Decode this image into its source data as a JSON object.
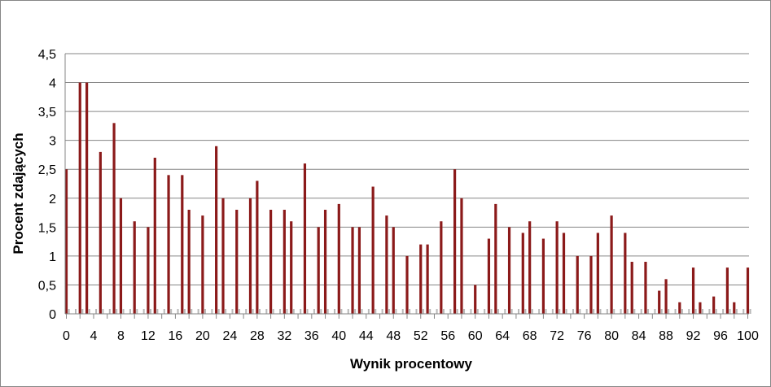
{
  "chart_data": {
    "type": "bar",
    "title": "",
    "xlabel": "Wynik procentowy",
    "ylabel": "Procent zdających",
    "ylim": [
      0,
      4.5
    ],
    "yticks": [
      "0",
      "0,5",
      "1",
      "1,5",
      "2",
      "2,5",
      "3",
      "3,5",
      "4",
      "4,5"
    ],
    "xticks": [
      "0",
      "4",
      "8",
      "12",
      "16",
      "20",
      "24",
      "28",
      "32",
      "36",
      "40",
      "44",
      "48",
      "52",
      "56",
      "60",
      "64",
      "68",
      "72",
      "76",
      "80",
      "84",
      "88",
      "92",
      "96",
      "100"
    ],
    "grid": true,
    "legend": "none",
    "bar_color": "#8B1A1A",
    "x": [
      0,
      1,
      2,
      3,
      4,
      5,
      6,
      7,
      8,
      9,
      10,
      11,
      12,
      13,
      14,
      15,
      16,
      17,
      18,
      19,
      20,
      21,
      22,
      23,
      24,
      25,
      26,
      27,
      28,
      29,
      30,
      31,
      32,
      33,
      34,
      35,
      36,
      37,
      38,
      39,
      40,
      41,
      42,
      43,
      44,
      45,
      46,
      47,
      48,
      49,
      50,
      51,
      52,
      53,
      54,
      55,
      56,
      57,
      58,
      59,
      60,
      61,
      62,
      63,
      64,
      65,
      66,
      67,
      68,
      69,
      70,
      71,
      72,
      73,
      74,
      75,
      76,
      77,
      78,
      79,
      80,
      81,
      82,
      83,
      84,
      85,
      86,
      87,
      88,
      89,
      90,
      91,
      92,
      93,
      94,
      95,
      96,
      97,
      98,
      99,
      100
    ],
    "values": [
      2.5,
      0,
      4.0,
      4.0,
      0,
      2.8,
      0,
      3.3,
      2.0,
      0,
      1.6,
      0,
      1.5,
      2.7,
      0,
      2.4,
      0,
      2.4,
      1.8,
      0,
      1.7,
      0,
      2.9,
      2.0,
      0,
      1.8,
      0,
      2.0,
      2.3,
      0,
      1.8,
      0,
      1.8,
      1.6,
      0,
      2.6,
      0,
      1.5,
      1.8,
      0,
      1.9,
      0,
      1.5,
      1.5,
      0,
      2.2,
      0,
      1.7,
      1.5,
      0,
      1.0,
      0,
      1.2,
      1.2,
      0,
      1.6,
      0,
      2.5,
      2.0,
      0,
      0.5,
      0,
      1.3,
      1.9,
      0,
      1.5,
      0,
      1.4,
      1.6,
      0,
      1.3,
      0,
      1.6,
      1.4,
      0,
      1.0,
      0,
      1.0,
      1.4,
      0,
      1.7,
      0,
      1.4,
      0.9,
      0,
      0.9,
      0,
      0.4,
      0.6,
      0,
      0.2,
      0,
      0.8,
      0.2,
      0,
      0.3,
      0,
      0.8,
      0.2,
      0,
      0.8
    ]
  }
}
